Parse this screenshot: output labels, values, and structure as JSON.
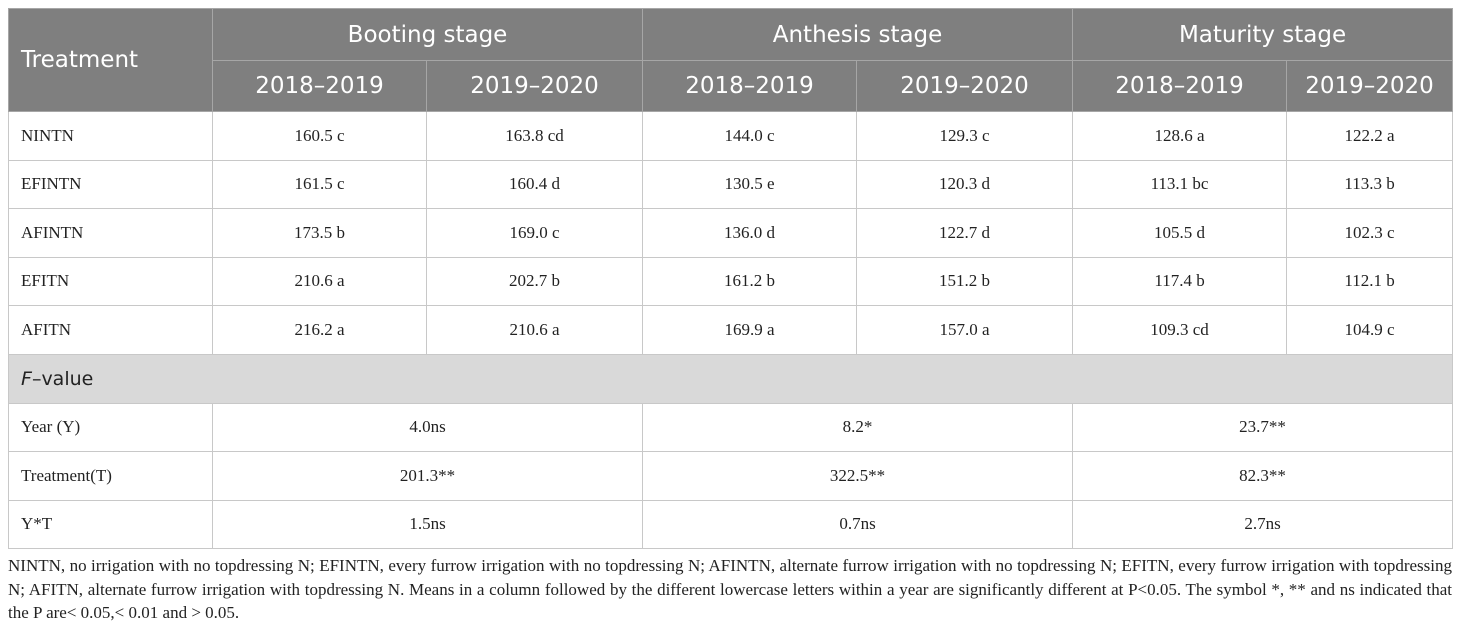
{
  "header": {
    "treatment": "Treatment",
    "stages": [
      "Booting stage",
      "Anthesis stage",
      "Maturity stage"
    ],
    "years": [
      "2018–2019",
      "2019–2020",
      "2018–2019",
      "2019–2020",
      "2018–2019",
      "2019–2020"
    ]
  },
  "rows": [
    {
      "label": "NINTN",
      "values": [
        "160.5 c",
        "163.8 cd",
        "144.0 c",
        "129.3 c",
        "128.6 a",
        "122.2 a"
      ]
    },
    {
      "label": "EFINTN",
      "values": [
        "161.5 c",
        "160.4 d",
        "130.5 e",
        "120.3 d",
        "113.1 bc",
        "113.3 b"
      ]
    },
    {
      "label": "AFINTN",
      "values": [
        "173.5 b",
        "169.0 c",
        "136.0 d",
        "122.7 d",
        "105.5 d",
        "102.3 c"
      ]
    },
    {
      "label": "EFITN",
      "values": [
        "210.6 a",
        "202.7 b",
        "161.2 b",
        "151.2 b",
        "117.4 b",
        "112.1 b"
      ]
    },
    {
      "label": "AFITN",
      "values": [
        "216.2 a",
        "210.6 a",
        "169.9 a",
        "157.0 a",
        "109.3 cd",
        "104.9 c"
      ]
    }
  ],
  "fvalue": {
    "label_italic": "F",
    "label_rest": "–value",
    "rows": [
      {
        "label": "Year (Y)",
        "values": [
          "4.0ns",
          "8.2*",
          "23.7**"
        ]
      },
      {
        "label": "Treatment(T)",
        "values": [
          "201.3**",
          "322.5**",
          "82.3**"
        ]
      },
      {
        "label": "Y*T",
        "values": [
          "1.5ns",
          "0.7ns",
          "2.7ns"
        ]
      }
    ]
  },
  "footnote": "NINTN, no irrigation with no topdressing N; EFINTN, every furrow irrigation with no topdressing N; AFINTN, alternate furrow irrigation with no topdressing N; EFITN, every furrow irrigation with topdressing N; AFITN, alternate furrow irrigation with topdressing N. Means in a column followed by the different lowercase letters within a year are significantly different at P<0.05. The symbol *, ** and ns indicated that the P are< 0.05,< 0.01 and > 0.05."
}
